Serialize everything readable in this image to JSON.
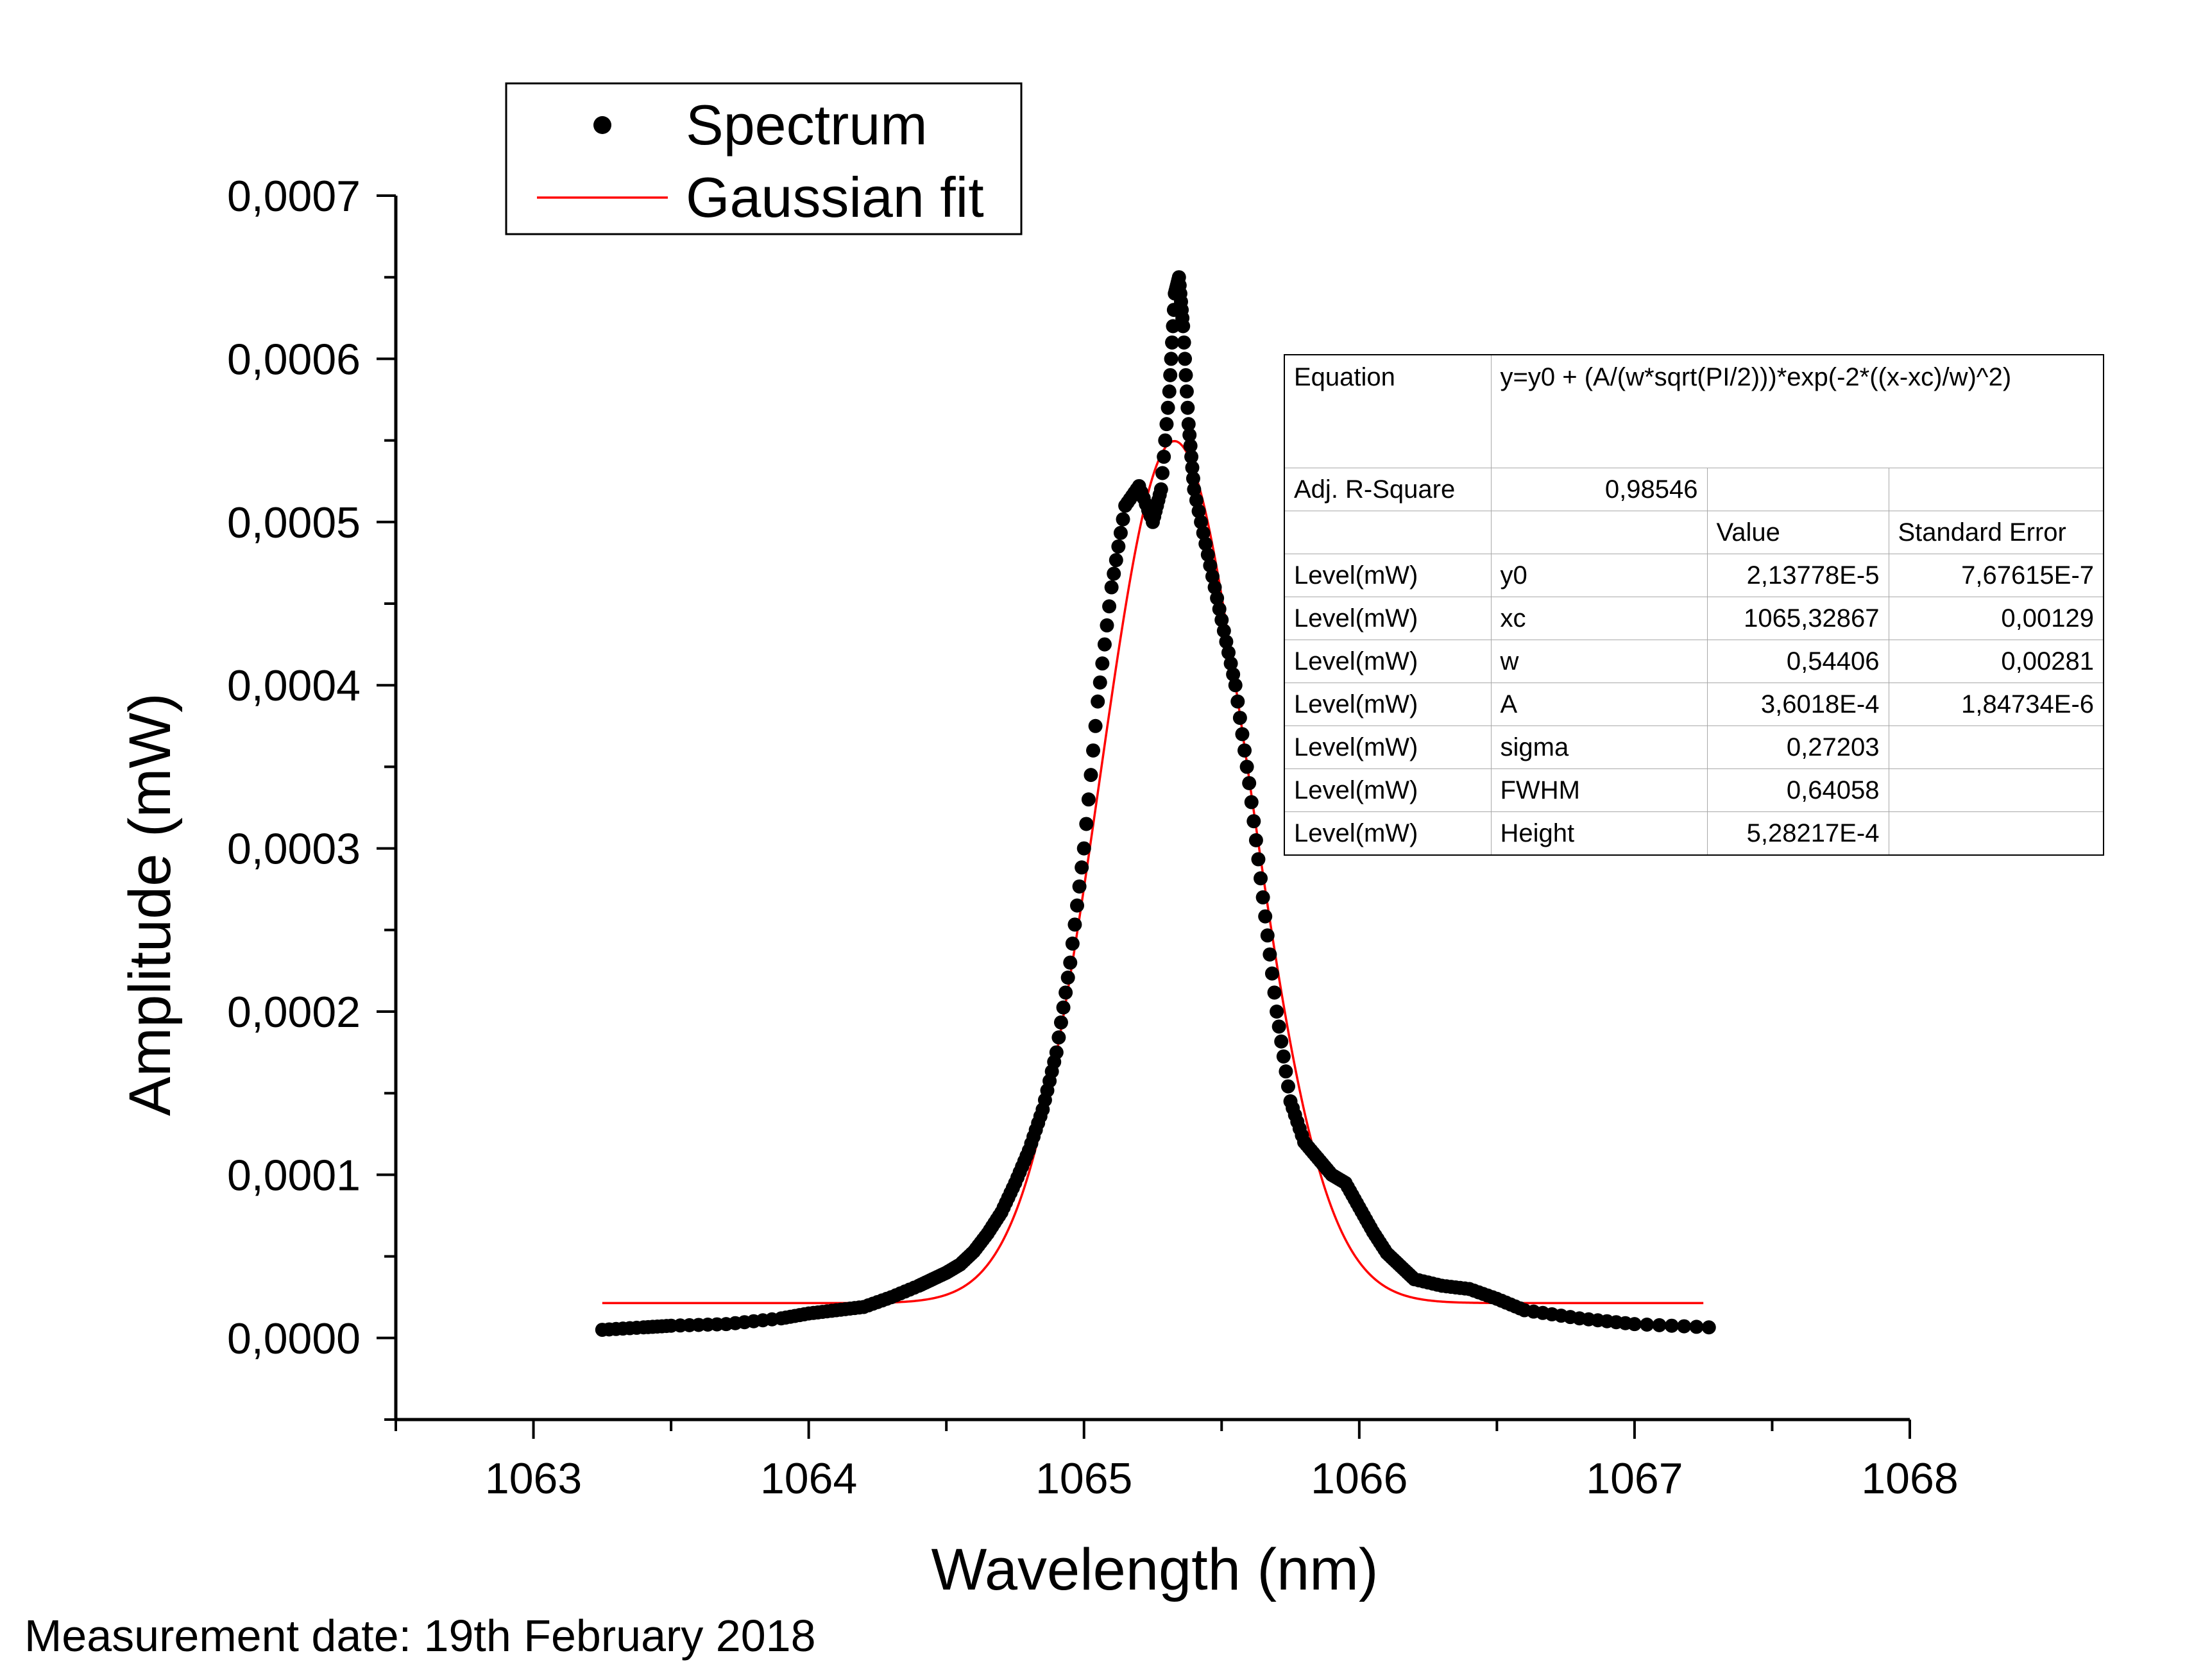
{
  "chart_data": {
    "type": "scatter",
    "xlabel": "Wavelength (nm)",
    "ylabel": "Amplitude (mW)",
    "xlim": [
      1062.5,
      1068
    ],
    "ylim": [
      -5e-05,
      0.0007
    ],
    "x_ticks": [
      "1063",
      "1064",
      "1065",
      "1066",
      "1067",
      "1068"
    ],
    "y_ticks": [
      "0,0000",
      "0,0001",
      "0,0002",
      "0,0003",
      "0,0004",
      "0,0005",
      "0,0006",
      "0,0007"
    ],
    "legend": {
      "position": "top-left",
      "entries": [
        {
          "label": "Spectrum",
          "marker": "dot",
          "color": "#000000"
        },
        {
          "label": "Gaussian fit",
          "marker": "line",
          "color": "#ff0000"
        }
      ]
    },
    "series": [
      {
        "name": "Spectrum",
        "style": "dots",
        "color": "#000000",
        "points": [
          [
            1063.25,
            5e-06
          ],
          [
            1063.4,
            6.5e-06
          ],
          [
            1063.5,
            7.5e-06
          ],
          [
            1063.7,
            8.5e-06
          ],
          [
            1063.9,
            1.2e-05
          ],
          [
            1064.0,
            1.5e-05
          ],
          [
            1064.1,
            1.7e-05
          ],
          [
            1064.2,
            1.9e-05
          ],
          [
            1064.3,
            2.5e-05
          ],
          [
            1064.4,
            3.2e-05
          ],
          [
            1064.45,
            3.6e-05
          ],
          [
            1064.5,
            4e-05
          ],
          [
            1064.55,
            4.5e-05
          ],
          [
            1064.6,
            5.3e-05
          ],
          [
            1064.65,
            6.4e-05
          ],
          [
            1064.7,
            7.7e-05
          ],
          [
            1064.75,
            9.5e-05
          ],
          [
            1064.8,
            0.000115
          ],
          [
            1064.85,
            0.00014
          ],
          [
            1064.9,
            0.000175
          ],
          [
            1064.95,
            0.00023
          ],
          [
            1065.0,
            0.0003
          ],
          [
            1065.05,
            0.00039
          ],
          [
            1065.1,
            0.00046
          ],
          [
            1065.15,
            0.00051
          ],
          [
            1065.2,
            0.000522
          ],
          [
            1065.25,
            0.0005
          ],
          [
            1065.28,
            0.00052
          ],
          [
            1065.31,
            0.00058
          ],
          [
            1065.33,
            0.00064
          ],
          [
            1065.345,
            0.00065
          ],
          [
            1065.36,
            0.00062
          ],
          [
            1065.38,
            0.00056
          ],
          [
            1065.4,
            0.00052
          ],
          [
            1065.45,
            0.00048
          ],
          [
            1065.5,
            0.00044
          ],
          [
            1065.55,
            0.0004
          ],
          [
            1065.6,
            0.00034
          ],
          [
            1065.65,
            0.00027
          ],
          [
            1065.7,
            0.0002
          ],
          [
            1065.75,
            0.000145
          ],
          [
            1065.8,
            0.00012
          ],
          [
            1065.85,
            0.00011
          ],
          [
            1065.9,
            0.0001
          ],
          [
            1065.95,
            9.5e-05
          ],
          [
            1066.0,
            8e-05
          ],
          [
            1066.05,
            6.5e-05
          ],
          [
            1066.1,
            5.2e-05
          ],
          [
            1066.15,
            4.4e-05
          ],
          [
            1066.2,
            3.6e-05
          ],
          [
            1066.3,
            3.2e-05
          ],
          [
            1066.4,
            3e-05
          ],
          [
            1066.5,
            2.4e-05
          ],
          [
            1066.6,
            1.7e-05
          ],
          [
            1066.8,
            1.2e-05
          ],
          [
            1067.0,
            8.5e-06
          ],
          [
            1067.27,
            6.5e-06
          ]
        ]
      },
      {
        "name": "Gaussian fit",
        "style": "line",
        "color": "#ff0000",
        "x_range": [
          1063.25,
          1067.25
        ]
      }
    ],
    "fit_table": {
      "equation_label": "Equation",
      "equation": "y=y0 + (A/(w*sqrt(PI/2)))*exp(-2*((x-xc)/w)^2)",
      "adj_r_square_label": "Adj. R-Square",
      "adj_r_square": "0,98546",
      "headers": [
        "",
        "",
        "Value",
        "Standard Error"
      ],
      "rows": [
        [
          "Level(mW)",
          "y0",
          "2,13778E-5",
          "7,67615E-7"
        ],
        [
          "Level(mW)",
          "xc",
          "1065,32867",
          "0,00129"
        ],
        [
          "Level(mW)",
          "w",
          "0,54406",
          "0,00281"
        ],
        [
          "Level(mW)",
          "A",
          "3,6018E-4",
          "1,84734E-6"
        ],
        [
          "Level(mW)",
          "sigma",
          "0,27203",
          ""
        ],
        [
          "Level(mW)",
          "FWHM",
          "0,64058",
          ""
        ],
        [
          "Level(mW)",
          "Height",
          "5,28217E-4",
          ""
        ]
      ],
      "fit_params": {
        "y0": 2.13778e-05,
        "xc": 1065.32867,
        "w": 0.54406,
        "A": 0.00036018
      }
    }
  },
  "footer": {
    "note": "Measurement date: 19th February 2018"
  }
}
